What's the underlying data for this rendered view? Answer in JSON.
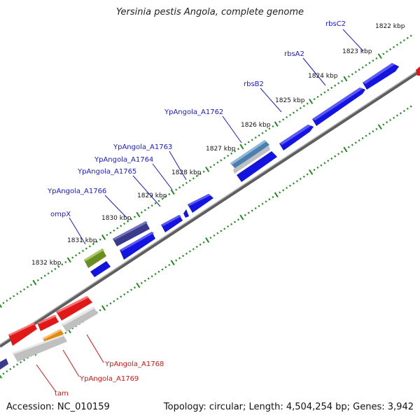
{
  "title": "Yersinia pestis Angola, complete genome",
  "footer": {
    "accession": "Accession: NC_010159",
    "summary": "Topology: circular; Length: 4,504,254 bp; Genes: 3,942"
  },
  "colors": {
    "background": "#ffffff",
    "backbone": "#8a8a8a",
    "tick": "#1f8a1f",
    "label_forward": "#1a1acc",
    "label_reverse": "#cc1a1a",
    "gene_blue": "#1414e0",
    "gene_indigo": "#3a3a8c",
    "gene_olive": "#6b8e23",
    "gene_steel": "#4a7fb0",
    "gene_red": "#e01818",
    "gene_gray": "#c0c0c0",
    "gene_orange": "#e08a14"
  },
  "ruler": {
    "unit": "kbp",
    "labels": [
      "1822 kbp",
      "1823 kbp",
      "1824 kbp",
      "1825 kbp",
      "1826 kbp",
      "1827 kbp",
      "1828 kbp",
      "1829 kbp",
      "1830 kbp",
      "1831 kbp",
      "1832 kbp"
    ]
  },
  "gene_labels": [
    {
      "name": "rbsC2",
      "strand": "forward"
    },
    {
      "name": "rbsA2",
      "strand": "forward"
    },
    {
      "name": "rbsB2",
      "strand": "forward"
    },
    {
      "name": "YpAngola_A1762",
      "strand": "forward"
    },
    {
      "name": "YpAngola_A1763",
      "strand": "forward"
    },
    {
      "name": "YpAngola_A1764",
      "strand": "forward"
    },
    {
      "name": "YpAngola_A1765",
      "strand": "forward"
    },
    {
      "name": "YpAngola_A1766",
      "strand": "forward"
    },
    {
      "name": "ompX",
      "strand": "forward"
    },
    {
      "name": "YpAngola_A1768",
      "strand": "reverse"
    },
    {
      "name": "YpAngola_A1769",
      "strand": "reverse"
    },
    {
      "name": "tam",
      "strand": "reverse"
    }
  ]
}
